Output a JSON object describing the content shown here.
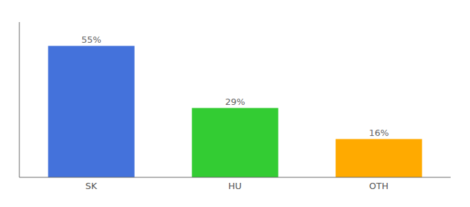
{
  "chart_data": {
    "type": "bar",
    "categories": [
      "SK",
      "HU",
      "OTH"
    ],
    "values": [
      55,
      29,
      16
    ],
    "colors": [
      "#4472db",
      "#33cc33",
      "#ffaa00"
    ],
    "ylim": [
      0,
      65
    ],
    "grid": false,
    "data_labels": true,
    "value_labels": [
      "55%",
      "29%",
      "16%"
    ],
    "tick_labels": "x"
  }
}
